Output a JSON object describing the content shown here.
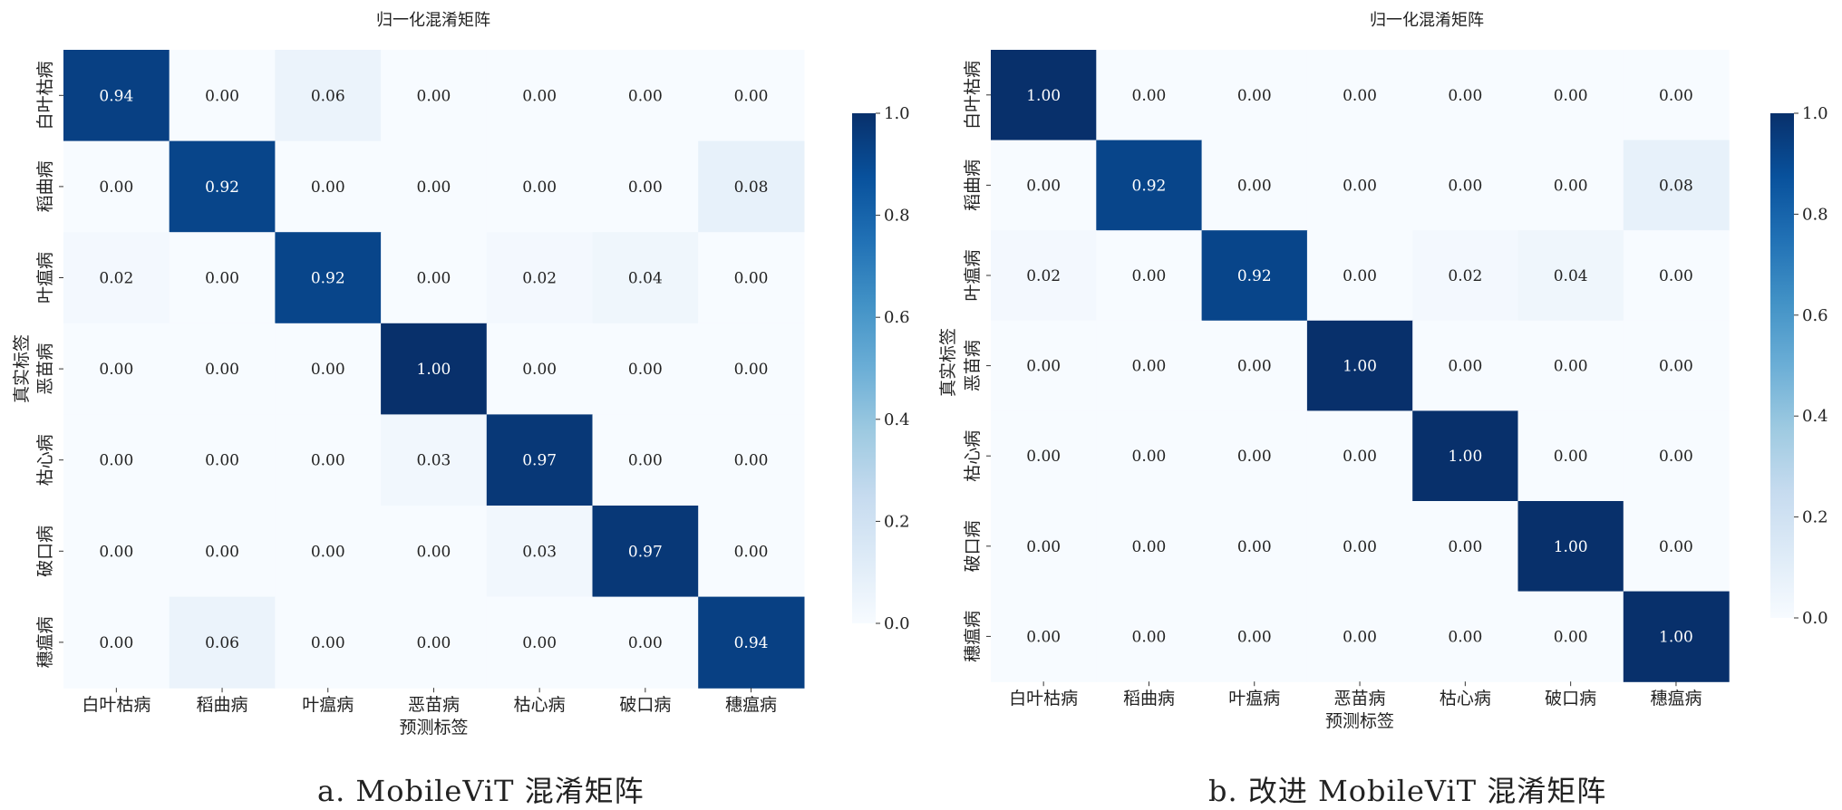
{
  "chart_data": [
    {
      "type": "heatmap",
      "title": "归一化混淆矩阵",
      "xlabel": "预测标签",
      "ylabel": "真实标签",
      "x_categories": [
        "白叶枯病",
        "稻曲病",
        "叶瘟病",
        "恶苗病",
        "枯心病",
        "破口病",
        "穗瘟病"
      ],
      "y_categories": [
        "白叶枯病",
        "稻曲病",
        "叶瘟病",
        "恶苗病",
        "枯心病",
        "破口病",
        "穗瘟病"
      ],
      "values": [
        [
          0.94,
          0.0,
          0.06,
          0.0,
          0.0,
          0.0,
          0.0
        ],
        [
          0.0,
          0.92,
          0.0,
          0.0,
          0.0,
          0.0,
          0.08
        ],
        [
          0.02,
          0.0,
          0.92,
          0.0,
          0.02,
          0.04,
          0.0
        ],
        [
          0.0,
          0.0,
          0.0,
          1.0,
          0.0,
          0.0,
          0.0
        ],
        [
          0.0,
          0.0,
          0.0,
          0.03,
          0.97,
          0.0,
          0.0
        ],
        [
          0.0,
          0.0,
          0.0,
          0.0,
          0.03,
          0.97,
          0.0
        ],
        [
          0.0,
          0.06,
          0.0,
          0.0,
          0.0,
          0.0,
          0.94
        ]
      ],
      "colorbar": {
        "range": [
          0.0,
          1.0
        ],
        "ticks": [
          "0.0",
          "0.2",
          "0.4",
          "0.6",
          "0.8",
          "1.0"
        ],
        "colormap": "Blues"
      }
    },
    {
      "type": "heatmap",
      "title": "归一化混淆矩阵",
      "xlabel": "预测标签",
      "ylabel": "真实标签",
      "x_categories": [
        "白叶枯病",
        "稻曲病",
        "叶瘟病",
        "恶苗病",
        "枯心病",
        "破口病",
        "穗瘟病"
      ],
      "y_categories": [
        "白叶枯病",
        "稻曲病",
        "叶瘟病",
        "恶苗病",
        "枯心病",
        "破口病",
        "穗瘟病"
      ],
      "values": [
        [
          1.0,
          0.0,
          0.0,
          0.0,
          0.0,
          0.0,
          0.0
        ],
        [
          0.0,
          0.92,
          0.0,
          0.0,
          0.0,
          0.0,
          0.08
        ],
        [
          0.02,
          0.0,
          0.92,
          0.0,
          0.02,
          0.04,
          0.0
        ],
        [
          0.0,
          0.0,
          0.0,
          1.0,
          0.0,
          0.0,
          0.0
        ],
        [
          0.0,
          0.0,
          0.0,
          0.0,
          1.0,
          0.0,
          0.0
        ],
        [
          0.0,
          0.0,
          0.0,
          0.0,
          0.0,
          1.0,
          0.0
        ],
        [
          0.0,
          0.0,
          0.0,
          0.0,
          0.0,
          0.0,
          1.0
        ]
      ],
      "colorbar": {
        "range": [
          0.0,
          1.0
        ],
        "ticks": [
          "0.0",
          "0.2",
          "0.4",
          "0.6",
          "0.8",
          "1.0"
        ],
        "colormap": "Blues"
      }
    }
  ],
  "captions": {
    "a": "a. MobileViT 混淆矩阵",
    "b": "b. 改进 MobileViT 混淆矩阵"
  }
}
